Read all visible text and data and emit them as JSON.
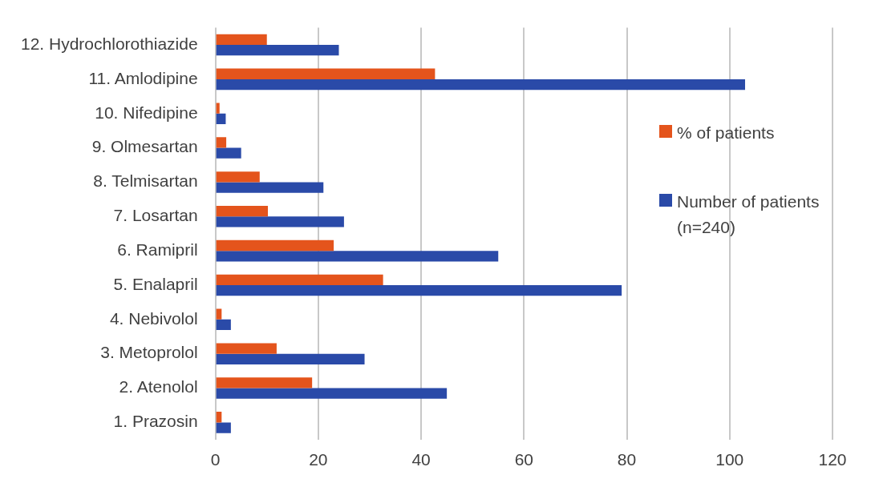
{
  "chart_data": {
    "type": "bar",
    "orientation": "horizontal",
    "categories": [
      "12. Hydrochlorothiazide",
      "11. Amlodipine",
      "10. Nifedipine",
      "9. Olmesartan",
      "8. Telmisartan",
      "7. Losartan",
      "6. Ramipril",
      "5. Enalapril",
      "4. Nebivolol",
      "3. Metoprolol",
      "2. Atenolol",
      "1. Prazosin"
    ],
    "series": [
      {
        "name": "% of patients",
        "color": "#e4541c",
        "values": [
          10,
          42.7,
          0.8,
          2.1,
          8.6,
          10.2,
          23,
          32.6,
          1.2,
          11.9,
          18.8,
          1.2
        ]
      },
      {
        "name": "Number of patients (n=240)",
        "color": "#2a4aa8",
        "values": [
          24,
          103,
          2,
          5,
          21,
          25,
          55,
          79,
          3,
          29,
          45,
          3
        ]
      }
    ],
    "xlim": [
      0,
      120
    ],
    "xticks": [
      0,
      20,
      40,
      60,
      80,
      100,
      120
    ],
    "grid": "x",
    "legend": "right"
  }
}
